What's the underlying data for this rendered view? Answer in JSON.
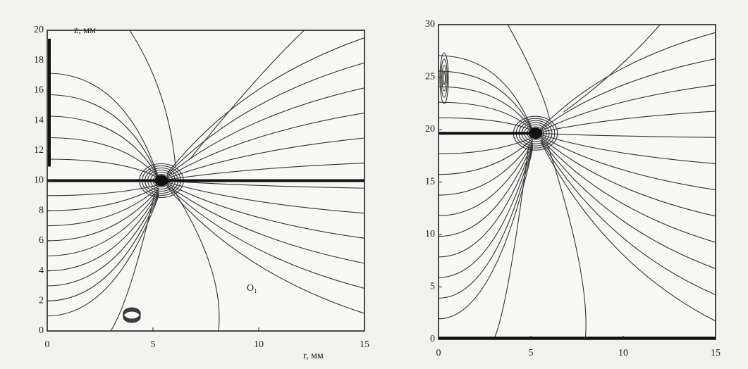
{
  "chart_data": [
    {
      "type": "contour",
      "xlabel": "r, мм",
      "ylabel": "z, мм",
      "annotation": "O₁",
      "xlim": [
        0,
        15
      ],
      "ylim": [
        0,
        20
      ],
      "xticks": [
        0,
        5,
        10,
        15
      ],
      "yticks": [
        0,
        2,
        4,
        6,
        8,
        10,
        12,
        14,
        16,
        18,
        20
      ]
    },
    {
      "type": "contour",
      "xlim": [
        0,
        15
      ],
      "ylim": [
        0,
        30
      ],
      "xticks": [
        0,
        5,
        10,
        15
      ],
      "yticks": [
        0,
        5,
        10,
        15,
        20,
        25,
        30
      ]
    }
  ]
}
